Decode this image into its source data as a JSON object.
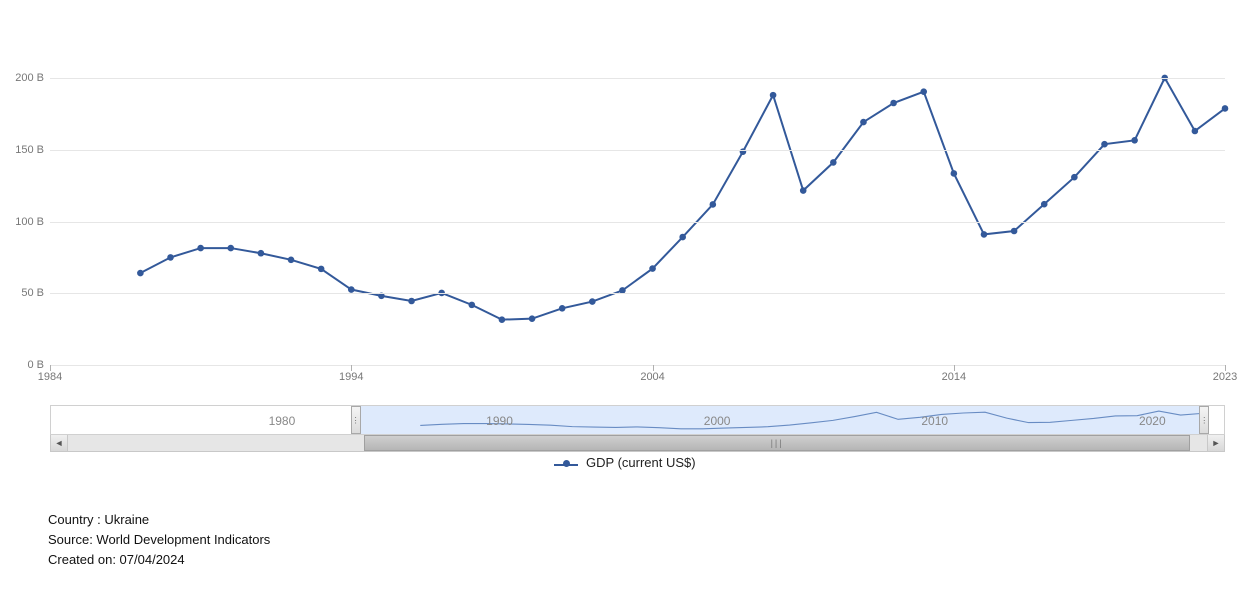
{
  "chart": {
    "type": "line",
    "series_name": "GDP (current US$)",
    "line_color": "#33599a",
    "marker_color": "#33599a",
    "marker_radius": 3.3,
    "line_width": 2,
    "grid_color": "#e6e6e6",
    "background_color": "#ffffff",
    "axis_label_color": "#777777",
    "axis_label_fontsize": 11,
    "x": [
      1987,
      1988,
      1989,
      1990,
      1991,
      1992,
      1993,
      1994,
      1995,
      1996,
      1997,
      1998,
      1999,
      2000,
      2001,
      2002,
      2003,
      2004,
      2005,
      2006,
      2007,
      2008,
      2009,
      2010,
      2011,
      2012,
      2013,
      2014,
      2015,
      2016,
      2017,
      2018,
      2019,
      2020,
      2021,
      2022,
      2023
    ],
    "y": [
      64.1,
      75.0,
      81.5,
      81.5,
      77.9,
      73.3,
      67.0,
      52.6,
      48.2,
      44.6,
      50.2,
      41.9,
      31.6,
      32.3,
      39.5,
      44.2,
      52.0,
      67.2,
      89.2,
      111.9,
      148.7,
      188.1,
      121.6,
      141.2,
      169.3,
      182.6,
      190.5,
      133.5,
      91.0,
      93.4,
      112.1,
      130.9,
      153.9,
      156.6,
      200.1,
      163.1,
      178.8
    ],
    "xlim": [
      1984,
      2023
    ],
    "ylim": [
      0,
      230
    ],
    "y_ticks": [
      0,
      50,
      100,
      150,
      200
    ],
    "y_tick_labels": [
      "0 B",
      "50 B",
      "100 B",
      "150 B",
      "200 B"
    ],
    "x_ticks": [
      1984,
      1994,
      2004,
      2014,
      2023
    ],
    "x_tick_labels": [
      "1984",
      "1994",
      "2004",
      "2014",
      "2023"
    ]
  },
  "range_selector": {
    "full_min": 1970,
    "full_max": 2024,
    "selected_min": 1984,
    "selected_max": 2023,
    "decade_labels": [
      "1980",
      "1990",
      "2000",
      "2010",
      "2020"
    ],
    "decade_positions": [
      1980,
      1990,
      2000,
      2010,
      2020
    ],
    "selected_fill": "rgba(160,195,245,0.35)",
    "sparkline_color": "#4a6fa8",
    "scroll_track_color": "#e6e6e6",
    "scroll_thumb_color": "#bcbcbc"
  },
  "legend": {
    "label": "GDP (current US$)"
  },
  "meta": {
    "country_line": "Country : Ukraine",
    "source_line": "Source: World Development Indicators",
    "created_line": "Created on: 07/04/2024"
  }
}
